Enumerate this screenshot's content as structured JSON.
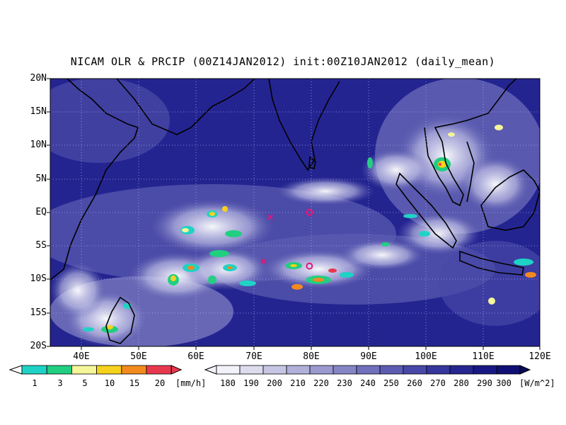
{
  "title": "NICAM OLR & PRCIP (00Z14JAN2012) init:00Z10JAN2012 (daily_mean)",
  "map": {
    "lat_labels": [
      "20N",
      "15N",
      "10N",
      "5N",
      "EQ",
      "5S",
      "10S",
      "15S",
      "20S"
    ],
    "lon_labels": [
      "40E",
      "50E",
      "60E",
      "70E",
      "80E",
      "90E",
      "100E",
      "110E",
      "120E"
    ],
    "lat_range": [
      -20,
      20
    ],
    "lon_range": [
      35,
      120
    ],
    "grid": "dotted",
    "markers": [
      {
        "lon": 73.2,
        "lat": -0.7,
        "symbol": "x"
      },
      {
        "lon": 80.0,
        "lat": 0.0,
        "symbol": "diamond"
      },
      {
        "lon": 72.0,
        "lat": -7.3,
        "symbol": "x"
      },
      {
        "lon": 80.0,
        "lat": -8.0,
        "symbol": "circle"
      }
    ],
    "marker_color": "#e0167a"
  },
  "precip_colorbar": {
    "labels": [
      "1",
      "3",
      "5",
      "10",
      "15",
      "20"
    ],
    "unit": "[mm/h]",
    "colors": [
      "#1ed3c5",
      "#20cf80",
      "#f5f59a",
      "#f7d21c",
      "#f28a1e",
      "#e8384f"
    ]
  },
  "olr_colorbar": {
    "labels": [
      "180",
      "190",
      "200",
      "210",
      "220",
      "230",
      "240",
      "250",
      "260",
      "270",
      "280",
      "290",
      "300"
    ],
    "unit": "[W/m^2]",
    "colors": [
      "#f2f2fa",
      "#dcdcee",
      "#c6c6e4",
      "#b0b0da",
      "#9a9ad0",
      "#8585c6",
      "#7070bc",
      "#5c5cb2",
      "#4848a8",
      "#36369c",
      "#262690",
      "#181884",
      "#0f0f74",
      "#0a0a5c"
    ]
  }
}
